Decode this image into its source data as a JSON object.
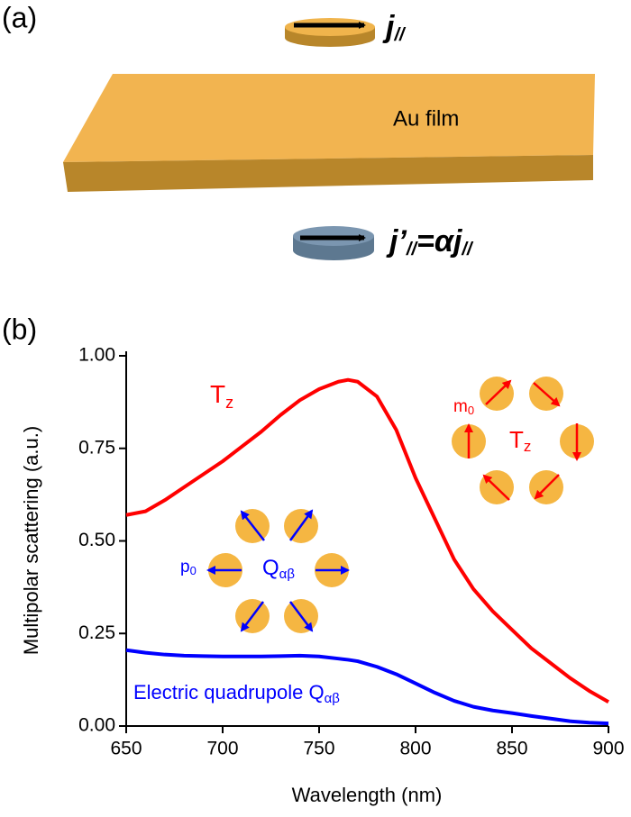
{
  "panel_a": {
    "label": "(a)",
    "film_label": "Au film",
    "j": {
      "main": "j",
      "sub": "//"
    },
    "j_prime": [
      "j’",
      "//",
      "=αj",
      "//"
    ]
  },
  "chart_data": {
    "type": "line",
    "panel_label": "(b)",
    "x_label": "Wavelength (nm)",
    "y_label": "Multipolar scattering (a.u.)",
    "x": [
      650,
      660,
      670,
      680,
      690,
      700,
      710,
      720,
      730,
      740,
      750,
      760,
      765,
      770,
      780,
      790,
      800,
      810,
      820,
      830,
      840,
      850,
      860,
      870,
      880,
      890,
      900
    ],
    "series": [
      {
        "name": {
          "main": "T",
          "sub": "z"
        },
        "color": "#ff0000",
        "values": [
          0.57,
          0.58,
          0.61,
          0.645,
          0.68,
          0.715,
          0.755,
          0.795,
          0.84,
          0.88,
          0.91,
          0.93,
          0.935,
          0.93,
          0.89,
          0.8,
          0.67,
          0.56,
          0.45,
          0.37,
          0.31,
          0.26,
          0.21,
          0.17,
          0.13,
          0.095,
          0.065
        ]
      },
      {
        "name": {
          "main": "Electric quadrupole Q",
          "sub": "αβ"
        },
        "color": "#0000ff",
        "values": [
          0.205,
          0.198,
          0.193,
          0.19,
          0.189,
          0.188,
          0.188,
          0.188,
          0.189,
          0.19,
          0.188,
          0.182,
          0.179,
          0.175,
          0.16,
          0.14,
          0.115,
          0.09,
          0.068,
          0.052,
          0.042,
          0.035,
          0.027,
          0.02,
          0.013,
          0.009,
          0.007
        ]
      }
    ],
    "xlim": [
      650,
      900
    ],
    "xticks": [
      650,
      700,
      750,
      800,
      850,
      900
    ],
    "ylim": [
      0,
      1
    ],
    "yticks": [
      {
        "value": 0,
        "label": "0.00"
      },
      {
        "value": 0.25,
        "label": "0.25"
      },
      {
        "value": 0.5,
        "label": "0.50"
      },
      {
        "value": 0.75,
        "label": "0.75"
      },
      {
        "value": 1,
        "label": "1.00"
      }
    ],
    "annotations": {
      "tz_inset": {
        "main": "T",
        "sub": "z"
      },
      "m0": {
        "main": "m",
        "sub": "0"
      },
      "p0": {
        "main": "p",
        "sub": "0"
      },
      "q": {
        "main": "Q",
        "sub": "αβ"
      }
    }
  }
}
